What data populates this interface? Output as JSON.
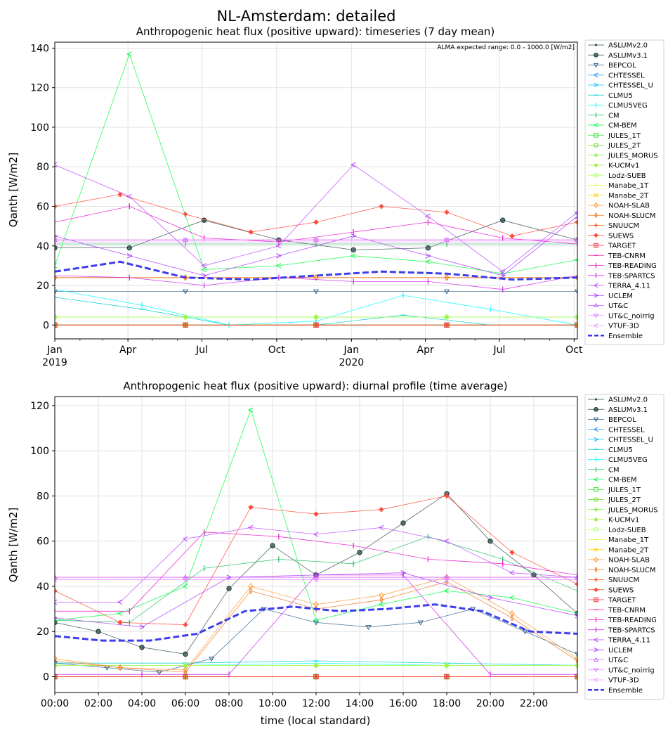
{
  "figure": {
    "suptitle": "NL-Amsterdam: detailed"
  },
  "chart_data": [
    {
      "type": "line",
      "title": "Anthropogenic heat flux (positive upward): timeseries (7 day mean)",
      "xlabel": "",
      "ylabel": "Qanth [W/m2]",
      "ylim": [
        -7,
        143
      ],
      "yticks": [
        0,
        20,
        40,
        60,
        80,
        100,
        120,
        140
      ],
      "xlim": [
        "2019-01-01",
        "2020-10-05"
      ],
      "x_ticks": [
        {
          "date": "2019-01-01",
          "label": "Jan",
          "sublabel": "2019"
        },
        {
          "date": "2019-04-01",
          "label": "Apr",
          "sublabel": ""
        },
        {
          "date": "2019-07-01",
          "label": "Jul",
          "sublabel": ""
        },
        {
          "date": "2019-10-01",
          "label": "Oct",
          "sublabel": ""
        },
        {
          "date": "2020-01-01",
          "label": "Jan",
          "sublabel": "2020"
        },
        {
          "date": "2020-04-01",
          "label": "Apr",
          "sublabel": ""
        },
        {
          "date": "2020-07-01",
          "label": "Jul",
          "sublabel": ""
        },
        {
          "date": "2020-10-01",
          "label": "Oct",
          "sublabel": ""
        }
      ],
      "annotation": "ALMA expected range: 0.0 - 1000.0 [W/m2]",
      "grid": true,
      "legend_position": "outside-right",
      "series": [
        {
          "name": "ASLUMv2.0",
          "color": "#2f4f4f",
          "marker": "dot",
          "values": [
            0,
            0,
            0,
            0,
            0
          ]
        },
        {
          "name": "ASLUMv3.1",
          "color": "#2f4f4f",
          "marker": "circle",
          "values": [
            39,
            39,
            53,
            43,
            38,
            39,
            53,
            43
          ]
        },
        {
          "name": "BEPCOL",
          "color": "#2f5f8a",
          "marker": "tri_down",
          "values": [
            17,
            17,
            17,
            17,
            17
          ]
        },
        {
          "name": "CHTESSEL",
          "color": "#1e90ff",
          "marker": "tri_left",
          "values": [
            0,
            0,
            0,
            0,
            0
          ]
        },
        {
          "name": "CHTESSEL_U",
          "color": "#00bfff",
          "marker": "tri_right",
          "values": [
            0,
            0,
            0,
            0,
            0
          ]
        },
        {
          "name": "CLMU5",
          "color": "#00ced1",
          "marker": "hline",
          "values": [
            14,
            8,
            0,
            0,
            5,
            0,
            0
          ]
        },
        {
          "name": "CLMU5VEG",
          "color": "#00ffff",
          "marker": "vline",
          "values": [
            18,
            10,
            0,
            2,
            15,
            8,
            0
          ]
        },
        {
          "name": "CM",
          "color": "#20c060",
          "marker": "vline",
          "values": [
            41,
            41,
            41,
            41,
            41
          ]
        },
        {
          "name": "CM-BEM",
          "color": "#00ff40",
          "marker": "tri_left",
          "values": [
            30,
            137,
            28,
            30,
            35,
            32,
            26,
            33
          ]
        },
        {
          "name": "JULES_1T",
          "color": "#33dd33",
          "marker": "square",
          "values": [
            0,
            0,
            0,
            0,
            0
          ]
        },
        {
          "name": "JULES_2T",
          "color": "#66dd22",
          "marker": "hex",
          "values": [
            0,
            0,
            0,
            0,
            0
          ]
        },
        {
          "name": "JULES_MORUS",
          "color": "#77ee33",
          "marker": "plus",
          "values": [
            4,
            4,
            4,
            4,
            4
          ]
        },
        {
          "name": "K-UCMv1",
          "color": "#99ee33",
          "marker": "star",
          "values": [
            4,
            4,
            4,
            4,
            4
          ]
        },
        {
          "name": "Lodz-SUEB",
          "color": "#aaff66",
          "marker": "hex",
          "values": [
            4,
            4,
            4,
            4,
            4
          ]
        },
        {
          "name": "Manabe_1T",
          "color": "#ccff33",
          "marker": "plus_small",
          "values": [
            0,
            0,
            0,
            0,
            0
          ]
        },
        {
          "name": "Manabe_2T",
          "color": "#ffcc00",
          "marker": "x",
          "values": [
            0,
            0,
            0,
            0,
            0
          ]
        },
        {
          "name": "NOAH-SLAB",
          "color": "#ff9933",
          "marker": "diamond",
          "values": [
            24,
            24,
            24,
            24,
            24
          ]
        },
        {
          "name": "NOAH-SLUCM",
          "color": "#ee7722",
          "marker": "thin_diamond",
          "values": [
            24,
            24,
            24,
            24,
            24
          ]
        },
        {
          "name": "SNUUCM",
          "color": "#ff5522",
          "marker": "plus",
          "values": [
            0,
            0,
            0,
            0,
            0
          ]
        },
        {
          "name": "SUEWS",
          "color": "#ff4433",
          "marker": "plus_filled",
          "values": [
            60,
            66,
            56,
            47,
            52,
            60,
            57,
            45,
            52
          ]
        },
        {
          "name": "TARGET",
          "color": "#ee3344",
          "marker": "square_cross",
          "values": [
            0,
            0,
            0,
            0,
            0
          ]
        },
        {
          "name": "TEB-CNRM",
          "color": "#ff22aa",
          "marker": "hline",
          "values": [
            43,
            43,
            43,
            43,
            43
          ]
        },
        {
          "name": "TEB-READING",
          "color": "#ee11cc",
          "marker": "vline",
          "values": [
            52,
            60,
            44,
            42,
            47,
            52,
            44,
            41
          ]
        },
        {
          "name": "TEB-SPARTCS",
          "color": "#cc22ee",
          "marker": "vline",
          "values": [
            25,
            24,
            20,
            24,
            22,
            22,
            18,
            25
          ]
        },
        {
          "name": "TERRA_4.11",
          "color": "#bb44ff",
          "marker": "tri_left",
          "values": [
            81,
            65,
            30,
            40,
            81,
            55,
            27,
            57
          ]
        },
        {
          "name": "UCLEM",
          "color": "#aa33ff",
          "marker": "tri_right",
          "values": [
            45,
            35,
            25,
            35,
            45,
            35,
            25,
            55
          ]
        },
        {
          "name": "UT&C",
          "color": "#cc66ff",
          "marker": "tri_up",
          "values": [
            43,
            43,
            43,
            43,
            43
          ]
        },
        {
          "name": "UT&C_noirrig",
          "color": "#dd88ff",
          "marker": "tri_down",
          "values": [
            43,
            43,
            43,
            43,
            43
          ]
        },
        {
          "name": "VTUF-3D",
          "color": "#ee99ff",
          "marker": "tri_left",
          "values": [
            42,
            42,
            42,
            42,
            42
          ]
        },
        {
          "name": "Ensemble",
          "color": "#3333ee",
          "marker": "dashed",
          "values": [
            27,
            32,
            24,
            23,
            25,
            27,
            26,
            23,
            24
          ]
        }
      ]
    },
    {
      "type": "line",
      "title": "Anthropogenic heat flux (positive upward): diurnal profile (time average)",
      "xlabel": "time (local standard)",
      "ylabel": "Qanth [W/m2]",
      "ylim": [
        -7,
        124
      ],
      "yticks": [
        0,
        20,
        40,
        60,
        80,
        100,
        120
      ],
      "xlim": [
        0,
        24
      ],
      "x_tick_labels": [
        "00:00",
        "02:00",
        "04:00",
        "06:00",
        "08:00",
        "10:00",
        "12:00",
        "14:00",
        "16:00",
        "18:00",
        "20:00",
        "22:00"
      ],
      "grid": true,
      "legend_position": "outside-right",
      "series": [
        {
          "name": "ASLUMv2.0",
          "color": "#2f4f4f",
          "marker": "dot",
          "values": [
            0,
            0,
            0,
            0,
            0
          ]
        },
        {
          "name": "ASLUMv3.1",
          "color": "#2f4f4f",
          "marker": "circle",
          "values": [
            24,
            20,
            13,
            10,
            39,
            58,
            45,
            55,
            68,
            81,
            60,
            45,
            28
          ]
        },
        {
          "name": "BEPCOL",
          "color": "#2f5f8a",
          "marker": "tri_down",
          "values": [
            6,
            4,
            2,
            8,
            30,
            24,
            22,
            24,
            30,
            20,
            10
          ]
        },
        {
          "name": "CHTESSEL",
          "color": "#1e90ff",
          "marker": "tri_left",
          "values": [
            0,
            0,
            0,
            0,
            0
          ]
        },
        {
          "name": "CHTESSEL_U",
          "color": "#00bfff",
          "marker": "tri_right",
          "values": [
            0,
            0,
            0,
            0,
            0
          ]
        },
        {
          "name": "CLMU5",
          "color": "#00ced1",
          "marker": "hline",
          "values": [
            6,
            6,
            7,
            6,
            5
          ]
        },
        {
          "name": "CLMU5VEG",
          "color": "#00ffff",
          "marker": "vline",
          "values": [
            5,
            5,
            6,
            5,
            5
          ]
        },
        {
          "name": "CM",
          "color": "#20c060",
          "marker": "vline",
          "values": [
            25,
            24,
            48,
            52,
            50,
            62,
            52,
            38
          ]
        },
        {
          "name": "CM-BEM",
          "color": "#00ff40",
          "marker": "tri_left",
          "values": [
            25,
            28,
            40,
            118,
            25,
            32,
            38,
            35,
            28
          ]
        },
        {
          "name": "JULES_1T",
          "color": "#33dd33",
          "marker": "square",
          "values": [
            0,
            0,
            0,
            0,
            0
          ]
        },
        {
          "name": "JULES_2T",
          "color": "#66dd22",
          "marker": "hex",
          "values": [
            0,
            0,
            0,
            0,
            0
          ]
        },
        {
          "name": "JULES_MORUS",
          "color": "#77ee33",
          "marker": "plus",
          "values": [
            5,
            5,
            5,
            5,
            5
          ]
        },
        {
          "name": "K-UCMv1",
          "color": "#99ee33",
          "marker": "star",
          "values": [
            5,
            5,
            5,
            5,
            5
          ]
        },
        {
          "name": "Lodz-SUEB",
          "color": "#aaff66",
          "marker": "hex",
          "values": [
            5,
            5,
            5,
            5,
            5
          ]
        },
        {
          "name": "Manabe_1T",
          "color": "#ccff33",
          "marker": "plus_small",
          "values": [
            0,
            0,
            0,
            0,
            0
          ]
        },
        {
          "name": "Manabe_2T",
          "color": "#ffcc00",
          "marker": "x",
          "values": [
            0,
            0,
            0,
            0,
            0
          ]
        },
        {
          "name": "NOAH-SLAB",
          "color": "#ff9933",
          "marker": "diamond",
          "values": [
            8,
            4,
            3,
            40,
            32,
            36,
            44,
            28,
            8
          ]
        },
        {
          "name": "NOAH-SLUCM",
          "color": "#ee7722",
          "marker": "thin_diamond",
          "values": [
            7,
            4,
            2,
            38,
            30,
            34,
            42,
            26,
            7
          ]
        },
        {
          "name": "SNUUCM",
          "color": "#ff5522",
          "marker": "plus",
          "values": [
            0,
            0,
            0,
            0,
            0
          ]
        },
        {
          "name": "SUEWS",
          "color": "#ff4433",
          "marker": "plus_filled",
          "values": [
            38,
            24,
            23,
            75,
            72,
            74,
            80,
            55,
            41
          ]
        },
        {
          "name": "TARGET",
          "color": "#ee3344",
          "marker": "square_cross",
          "values": [
            0,
            0,
            0,
            0,
            0
          ]
        },
        {
          "name": "TEB-CNRM",
          "color": "#ff22aa",
          "marker": "hline",
          "values": [
            44,
            44,
            44,
            44,
            44
          ]
        },
        {
          "name": "TEB-READING",
          "color": "#ee11cc",
          "marker": "vline",
          "values": [
            29,
            29,
            64,
            62,
            58,
            52,
            50,
            45
          ]
        },
        {
          "name": "TEB-SPARTCS",
          "color": "#cc22ee",
          "marker": "vline",
          "values": [
            1,
            1,
            1,
            45,
            45,
            1,
            1
          ]
        },
        {
          "name": "TERRA_4.11",
          "color": "#bb44ff",
          "marker": "tri_left",
          "values": [
            33,
            33,
            61,
            66,
            63,
            66,
            60,
            46,
            44
          ]
        },
        {
          "name": "UCLEM",
          "color": "#aa33ff",
          "marker": "tri_right",
          "values": [
            26,
            22,
            44,
            45,
            46,
            35,
            27
          ]
        },
        {
          "name": "UT&C",
          "color": "#cc66ff",
          "marker": "tri_up",
          "values": [
            44,
            44,
            44,
            44,
            44
          ]
        },
        {
          "name": "UT&C_noirrig",
          "color": "#dd88ff",
          "marker": "tri_down",
          "values": [
            43,
            43,
            43,
            43,
            43
          ]
        },
        {
          "name": "VTUF-3D",
          "color": "#ee99ff",
          "marker": "tri_left",
          "values": [
            43,
            43,
            43,
            43,
            43
          ]
        },
        {
          "name": "Ensemble",
          "color": "#3333ee",
          "marker": "dashed",
          "values": [
            18,
            16,
            16,
            19,
            29,
            31,
            29,
            30,
            32,
            29,
            20,
            19
          ]
        }
      ]
    }
  ]
}
